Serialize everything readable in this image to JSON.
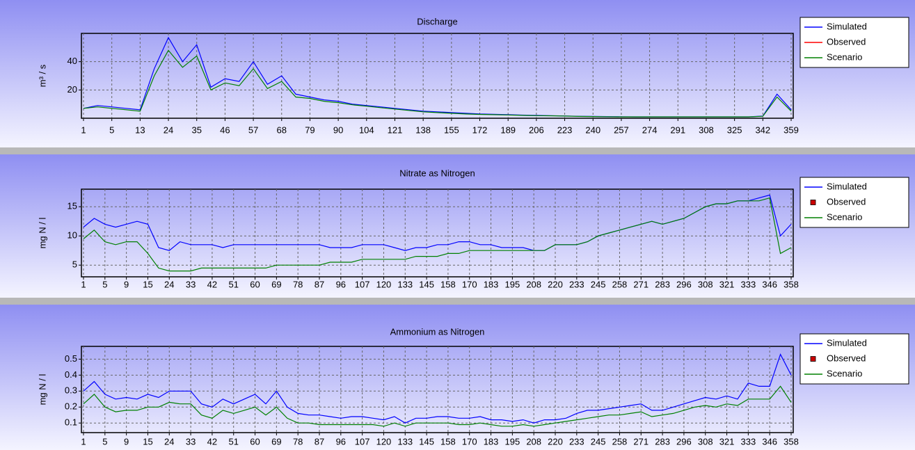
{
  "chart_data": [
    {
      "type": "line",
      "title": "Discharge",
      "y_label": "m³ / s",
      "categories": [
        1,
        null,
        5,
        null,
        13,
        null,
        24,
        null,
        35,
        null,
        46,
        null,
        57,
        null,
        68,
        null,
        79,
        null,
        90,
        null,
        104,
        null,
        121,
        null,
        138,
        null,
        155,
        null,
        172,
        null,
        189,
        null,
        206,
        null,
        223,
        null,
        240,
        null,
        257,
        null,
        274,
        null,
        291,
        null,
        308,
        null,
        325,
        null,
        342,
        null,
        359
      ],
      "series": [
        {
          "name": "Simulated",
          "color": "#0000ff",
          "values": [
            7,
            9,
            8,
            7,
            6,
            35,
            57,
            40,
            52,
            22,
            28,
            26,
            40,
            24,
            30,
            17,
            15,
            13,
            12,
            10,
            9,
            8,
            7,
            6,
            5,
            4.5,
            4,
            3.5,
            3,
            2.8,
            2.5,
            2.2,
            2,
            1.8,
            1.6,
            1.4,
            1.3,
            1.2,
            1.1,
            1,
            1,
            1,
            1,
            1,
            1,
            1,
            1,
            1,
            1.5,
            17,
            6
          ]
        },
        {
          "name": "Observed",
          "color": "#ff0000",
          "marker": "line",
          "values": [
            null,
            null,
            null,
            null,
            null,
            null,
            null,
            null,
            null,
            null,
            null,
            null,
            null,
            null,
            null,
            null,
            null,
            null,
            null,
            null,
            null,
            null,
            null,
            null,
            null,
            null,
            null,
            null,
            null,
            null,
            null,
            null,
            null,
            null,
            null,
            null,
            null,
            null,
            null,
            null,
            null,
            null,
            null,
            null,
            null,
            null,
            null,
            null,
            null,
            null,
            null
          ]
        },
        {
          "name": "Scenario",
          "color": "#008000",
          "values": [
            7,
            8,
            7,
            6,
            5,
            30,
            48,
            36,
            44,
            20,
            25,
            23,
            35,
            21,
            26,
            15,
            14,
            12,
            11,
            9.5,
            8.5,
            7.5,
            6.5,
            5.5,
            4.5,
            4,
            3.5,
            3,
            2.7,
            2.5,
            2.3,
            2,
            1.8,
            1.7,
            1.5,
            1.3,
            1.2,
            1.1,
            1,
            1,
            1,
            1,
            1,
            1,
            1,
            1,
            1,
            1,
            1.4,
            15,
            5
          ]
        }
      ],
      "ylim": [
        0,
        60
      ],
      "yticks": [
        20,
        40
      ],
      "grid": true
    },
    {
      "type": "line",
      "title": "Nitrate as Nitrogen",
      "y_label": "mg N / l",
      "categories": [
        1,
        null,
        5,
        null,
        9,
        null,
        15,
        null,
        24,
        null,
        33,
        null,
        42,
        null,
        51,
        null,
        60,
        null,
        69,
        null,
        78,
        null,
        87,
        null,
        96,
        null,
        107,
        null,
        120,
        null,
        133,
        null,
        145,
        null,
        158,
        null,
        170,
        null,
        183,
        null,
        195,
        null,
        208,
        null,
        220,
        null,
        233,
        null,
        245,
        null,
        258,
        null,
        271,
        null,
        283,
        null,
        296,
        null,
        308,
        null,
        321,
        null,
        333,
        null,
        346,
        null,
        358
      ],
      "series": [
        {
          "name": "Simulated",
          "color": "#0000ff",
          "values": [
            11.5,
            13,
            12,
            11.5,
            12,
            12.5,
            12,
            8,
            7.5,
            9,
            8.5,
            8.5,
            8.5,
            8,
            8.5,
            8.5,
            8.5,
            8.5,
            8.5,
            8.5,
            8.5,
            8.5,
            8.5,
            8,
            8,
            8,
            8.5,
            8.5,
            8.5,
            8,
            7.5,
            8,
            8,
            8.5,
            8.5,
            9,
            9,
            8.5,
            8.5,
            8,
            8,
            8,
            7.5,
            7.5,
            8.5,
            8.5,
            8.5,
            9,
            10,
            10.5,
            11,
            11.5,
            12,
            12.5,
            12,
            12.5,
            13,
            14,
            15,
            15.5,
            15.5,
            16,
            16,
            16.5,
            17,
            10,
            12
          ]
        },
        {
          "name": "Observed",
          "color": "#cc0000",
          "marker": "square",
          "values": [
            null,
            null,
            null,
            null,
            null,
            null,
            null,
            null,
            null,
            null,
            null,
            null,
            null,
            null,
            null,
            null,
            null,
            null,
            null,
            null,
            null,
            null,
            null,
            null,
            null,
            null,
            null,
            null,
            null,
            null,
            null,
            null,
            null,
            null,
            null,
            null,
            null,
            null,
            null,
            null,
            null,
            null,
            null,
            null,
            null,
            null,
            null,
            null,
            null,
            null,
            null,
            null,
            null,
            null,
            null,
            null,
            null,
            null,
            null,
            null,
            null,
            null,
            null,
            null,
            null,
            null,
            null
          ]
        },
        {
          "name": "Scenario",
          "color": "#008000",
          "values": [
            9.5,
            11,
            9,
            8.5,
            9,
            9,
            7,
            4.5,
            4,
            4,
            4,
            4.5,
            4.5,
            4.5,
            4.5,
            4.5,
            4.5,
            4.5,
            5,
            5,
            5,
            5,
            5,
            5.5,
            5.5,
            5.5,
            6,
            6,
            6,
            6,
            6,
            6.5,
            6.5,
            6.5,
            7,
            7,
            7.5,
            7.5,
            7.5,
            7.5,
            7.5,
            7.5,
            7.5,
            7.5,
            8.5,
            8.5,
            8.5,
            9,
            10,
            10.5,
            11,
            11.5,
            12,
            12.5,
            12,
            12.5,
            13,
            14,
            15,
            15.5,
            15.5,
            16,
            16,
            16,
            16.5,
            7,
            8
          ]
        }
      ],
      "ylim": [
        3,
        18
      ],
      "yticks": [
        5,
        10,
        15
      ],
      "grid": true
    },
    {
      "type": "line",
      "title": "Ammonium as Nitrogen",
      "y_label": "mg N / l",
      "categories": [
        1,
        null,
        5,
        null,
        9,
        null,
        15,
        null,
        24,
        null,
        33,
        null,
        42,
        null,
        51,
        null,
        60,
        null,
        69,
        null,
        78,
        null,
        87,
        null,
        96,
        null,
        107,
        null,
        120,
        null,
        133,
        null,
        145,
        null,
        158,
        null,
        170,
        null,
        183,
        null,
        195,
        null,
        208,
        null,
        220,
        null,
        233,
        null,
        245,
        null,
        258,
        null,
        271,
        null,
        283,
        null,
        296,
        null,
        308,
        null,
        321,
        null,
        333,
        null,
        346,
        null,
        358
      ],
      "series": [
        {
          "name": "Simulated",
          "color": "#0000ff",
          "values": [
            0.3,
            0.36,
            0.28,
            0.25,
            0.26,
            0.25,
            0.28,
            0.26,
            0.3,
            0.3,
            0.3,
            0.22,
            0.2,
            0.25,
            0.22,
            0.25,
            0.28,
            0.22,
            0.3,
            0.2,
            0.16,
            0.15,
            0.15,
            0.14,
            0.13,
            0.14,
            0.14,
            0.13,
            0.12,
            0.14,
            0.1,
            0.13,
            0.13,
            0.14,
            0.14,
            0.13,
            0.13,
            0.14,
            0.12,
            0.12,
            0.11,
            0.12,
            0.1,
            0.12,
            0.12,
            0.13,
            0.16,
            0.18,
            0.18,
            0.19,
            0.2,
            0.21,
            0.22,
            0.18,
            0.18,
            0.2,
            0.22,
            0.24,
            0.26,
            0.25,
            0.27,
            0.25,
            0.35,
            0.33,
            0.33,
            0.53,
            0.4
          ]
        },
        {
          "name": "Observed",
          "color": "#cc0000",
          "marker": "square",
          "values": [
            null,
            null,
            null,
            null,
            null,
            null,
            null,
            null,
            null,
            null,
            null,
            null,
            null,
            null,
            null,
            null,
            null,
            null,
            null,
            null,
            null,
            null,
            null,
            null,
            null,
            null,
            null,
            null,
            null,
            null,
            null,
            null,
            null,
            null,
            null,
            null,
            null,
            null,
            null,
            null,
            null,
            null,
            null,
            null,
            null,
            null,
            null,
            null,
            null,
            null,
            null,
            null,
            null,
            null,
            null,
            null,
            null,
            null,
            null,
            null,
            null,
            null,
            null,
            null,
            null,
            null,
            null
          ]
        },
        {
          "name": "Scenario",
          "color": "#008000",
          "values": [
            0.22,
            0.28,
            0.2,
            0.17,
            0.18,
            0.18,
            0.2,
            0.2,
            0.23,
            0.22,
            0.22,
            0.15,
            0.13,
            0.18,
            0.16,
            0.18,
            0.2,
            0.15,
            0.2,
            0.13,
            0.1,
            0.1,
            0.09,
            0.09,
            0.09,
            0.09,
            0.09,
            0.09,
            0.08,
            0.1,
            0.08,
            0.1,
            0.1,
            0.1,
            0.1,
            0.09,
            0.09,
            0.1,
            0.09,
            0.08,
            0.08,
            0.09,
            0.08,
            0.09,
            0.1,
            0.11,
            0.12,
            0.13,
            0.14,
            0.15,
            0.15,
            0.16,
            0.17,
            0.14,
            0.15,
            0.16,
            0.18,
            0.2,
            0.21,
            0.2,
            0.22,
            0.21,
            0.25,
            0.25,
            0.25,
            0.33,
            0.23
          ]
        }
      ],
      "ylim": [
        0.04,
        0.58
      ],
      "yticks": [
        0.1,
        0.2,
        0.3,
        0.4,
        0.5
      ],
      "grid": true
    }
  ]
}
